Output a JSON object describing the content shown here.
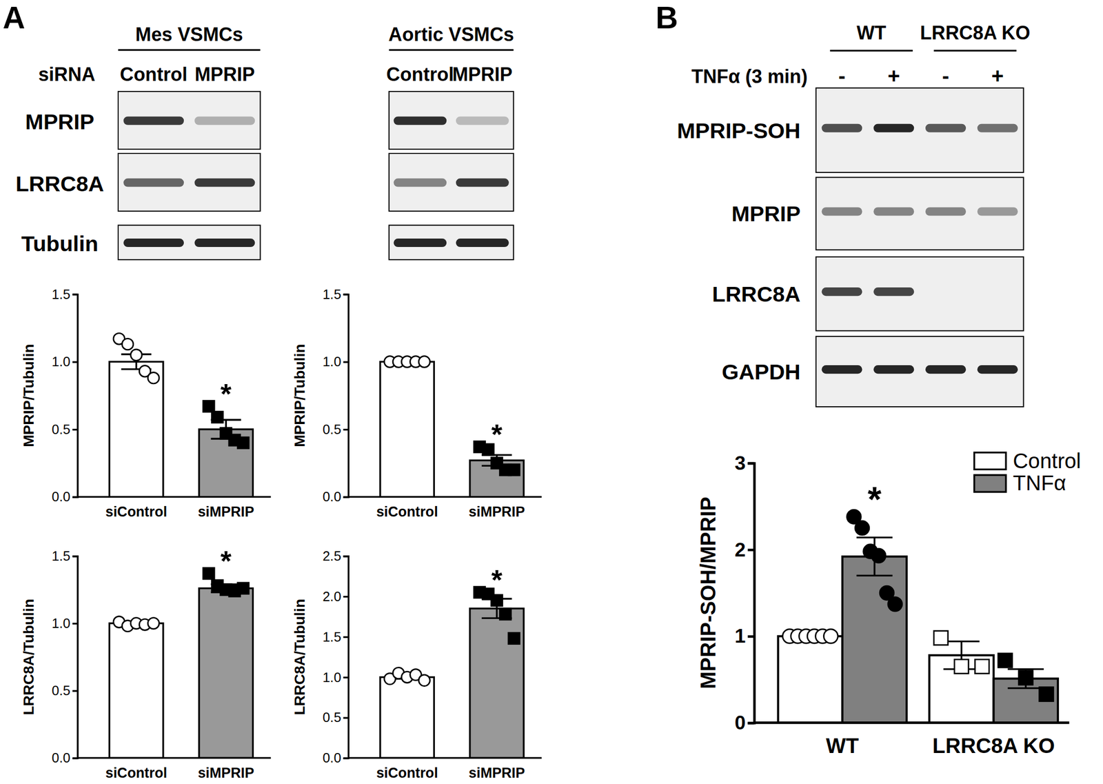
{
  "panels": [
    {
      "label": "A",
      "blot": {
        "row_header": "siRNA",
        "row_labels": [
          "MPRIP",
          "LRRC8A",
          "Tubulin"
        ],
        "sets": [
          {
            "header": "Mes VSMCs",
            "lanes": [
              "Control",
              "MPRIP"
            ],
            "bands": [
              [
                0.85,
                0.3
              ],
              [
                0.65,
                0.85
              ],
              [
                0.95,
                0.95
              ]
            ]
          },
          {
            "header": "Aortic VSMCs",
            "lanes": [
              "Control",
              "MPRIP"
            ],
            "bands": [
              [
                0.9,
                0.25
              ],
              [
                0.5,
                0.85
              ],
              [
                0.95,
                0.95
              ]
            ]
          }
        ]
      }
    },
    {
      "label": "B",
      "blot": {
        "groups": [
          {
            "label": "WT",
            "lanes": [
              0,
              1
            ]
          },
          {
            "label": "LRRC8A KO",
            "lanes": [
              2,
              3
            ]
          }
        ],
        "row_header": "TNFα (3 min)",
        "lanes": [
          "-",
          "+",
          "-",
          "+"
        ],
        "row_labels": [
          "MPRIP-SOH",
          "MPRIP",
          "LRRC8A",
          "GAPDH"
        ],
        "bands": [
          [
            0.75,
            0.95,
            0.7,
            0.6
          ],
          [
            0.5,
            0.5,
            0.5,
            0.4
          ],
          [
            0.8,
            0.8,
            0,
            0
          ],
          [
            0.95,
            0.95,
            0.95,
            0.95
          ]
        ]
      }
    }
  ],
  "chart_data": [
    {
      "type": "bar",
      "ylabel": "MPRIP/Tubulin",
      "categories": [
        "siControl",
        "siMPRIP"
      ],
      "values": [
        1.0,
        0.5
      ],
      "errors": [
        0.055,
        0.07
      ],
      "colors": [
        "#ffffff",
        "#999999"
      ],
      "points": [
        [
          1.17,
          1.13,
          1.05,
          0.93,
          0.88
        ],
        [
          0.67,
          0.59,
          0.47,
          0.42,
          0.4
        ]
      ],
      "ylim": [
        0,
        1.5
      ],
      "yticks": [
        {
          "value": 0,
          "label": "0.0"
        },
        0.5,
        {
          "value": 1,
          "label": "1.0"
        },
        1.5
      ],
      "grid": false,
      "annotations": [
        {
          "text": "*",
          "category": 1
        }
      ]
    },
    {
      "type": "bar",
      "ylabel": "MPRIP/Tubulin",
      "categories": [
        "siControl",
        "siMPRIP"
      ],
      "values": [
        1.0,
        0.27
      ],
      "errors": [
        0,
        0.04
      ],
      "colors": [
        "#ffffff",
        "#999999"
      ],
      "points": [
        [
          1.0,
          1.0,
          1.0,
          1.0,
          1.0
        ],
        [
          0.37,
          0.35,
          0.25,
          0.2,
          0.2
        ]
      ],
      "ylim": [
        0,
        1.5
      ],
      "yticks": [
        {
          "value": 0,
          "label": "0.0"
        },
        0.5,
        {
          "value": 1,
          "label": "1.0"
        },
        1.5
      ],
      "grid": false,
      "annotations": [
        {
          "text": "*",
          "category": 1
        }
      ]
    },
    {
      "type": "bar",
      "ylabel": "LRRC8A/Tubulin",
      "categories": [
        "siControl",
        "siMPRIP"
      ],
      "values": [
        1.0,
        1.26
      ],
      "errors": [
        0.015,
        0.03
      ],
      "colors": [
        "#ffffff",
        "#999999"
      ],
      "points": [
        [
          1.01,
          0.98,
          1.0,
          0.99,
          1.0
        ],
        [
          1.37,
          1.28,
          1.25,
          1.24,
          1.26
        ]
      ],
      "ylim": [
        0,
        1.5
      ],
      "yticks": [
        {
          "value": 0,
          "label": "0.0"
        },
        0.5,
        {
          "value": 1,
          "label": "1.0"
        },
        1.5
      ],
      "grid": false,
      "annotations": [
        {
          "text": "*",
          "category": 1
        }
      ]
    },
    {
      "type": "bar",
      "ylabel": "LRRC8A/Tubulin",
      "categories": [
        "siControl",
        "siMPRIP"
      ],
      "values": [
        1.0,
        1.85
      ],
      "errors": [
        0.02,
        0.12
      ],
      "colors": [
        "#ffffff",
        "#999999"
      ],
      "points": [
        [
          0.98,
          1.05,
          1.0,
          1.03,
          0.96
        ],
        [
          2.05,
          2.03,
          1.95,
          1.78,
          1.48
        ]
      ],
      "ylim": [
        0,
        2.5
      ],
      "yticks": [
        {
          "value": 0,
          "label": "0.0"
        },
        0.5,
        {
          "value": 1,
          "label": "1.0"
        },
        1.5,
        {
          "value": 2,
          "label": "2.0"
        },
        2.5
      ],
      "grid": false,
      "annotations": [
        {
          "text": "*",
          "category": 1
        }
      ]
    },
    {
      "type": "bar",
      "ylabel": "MPRIP-SOH/MPRIP",
      "categories": [
        "WT",
        "LRRC8A KO"
      ],
      "series": [
        {
          "name": "Control",
          "color": "#ffffff",
          "values": [
            1.0,
            0.78
          ],
          "errors": [
            0,
            0.16
          ],
          "points": [
            [
              1.0,
              1.0,
              1.0,
              1.0,
              1.0,
              1.0
            ],
            [
              0.98,
              0.65,
              0.65
            ]
          ]
        },
        {
          "name": "TNFα",
          "color": "#808080",
          "values": [
            1.92,
            0.51
          ],
          "errors": [
            0.22,
            0.11
          ],
          "points": [
            [
              2.38,
              2.25,
              1.98,
              1.93,
              1.5,
              1.37
            ],
            [
              0.72,
              0.52,
              0.33
            ]
          ]
        }
      ],
      "ylim": [
        0,
        3
      ],
      "yticks": [
        0,
        1,
        2,
        3
      ],
      "grid": false,
      "legend": "upper right",
      "annotations": [
        {
          "text": "*",
          "category": 0,
          "series": 1
        }
      ]
    }
  ]
}
